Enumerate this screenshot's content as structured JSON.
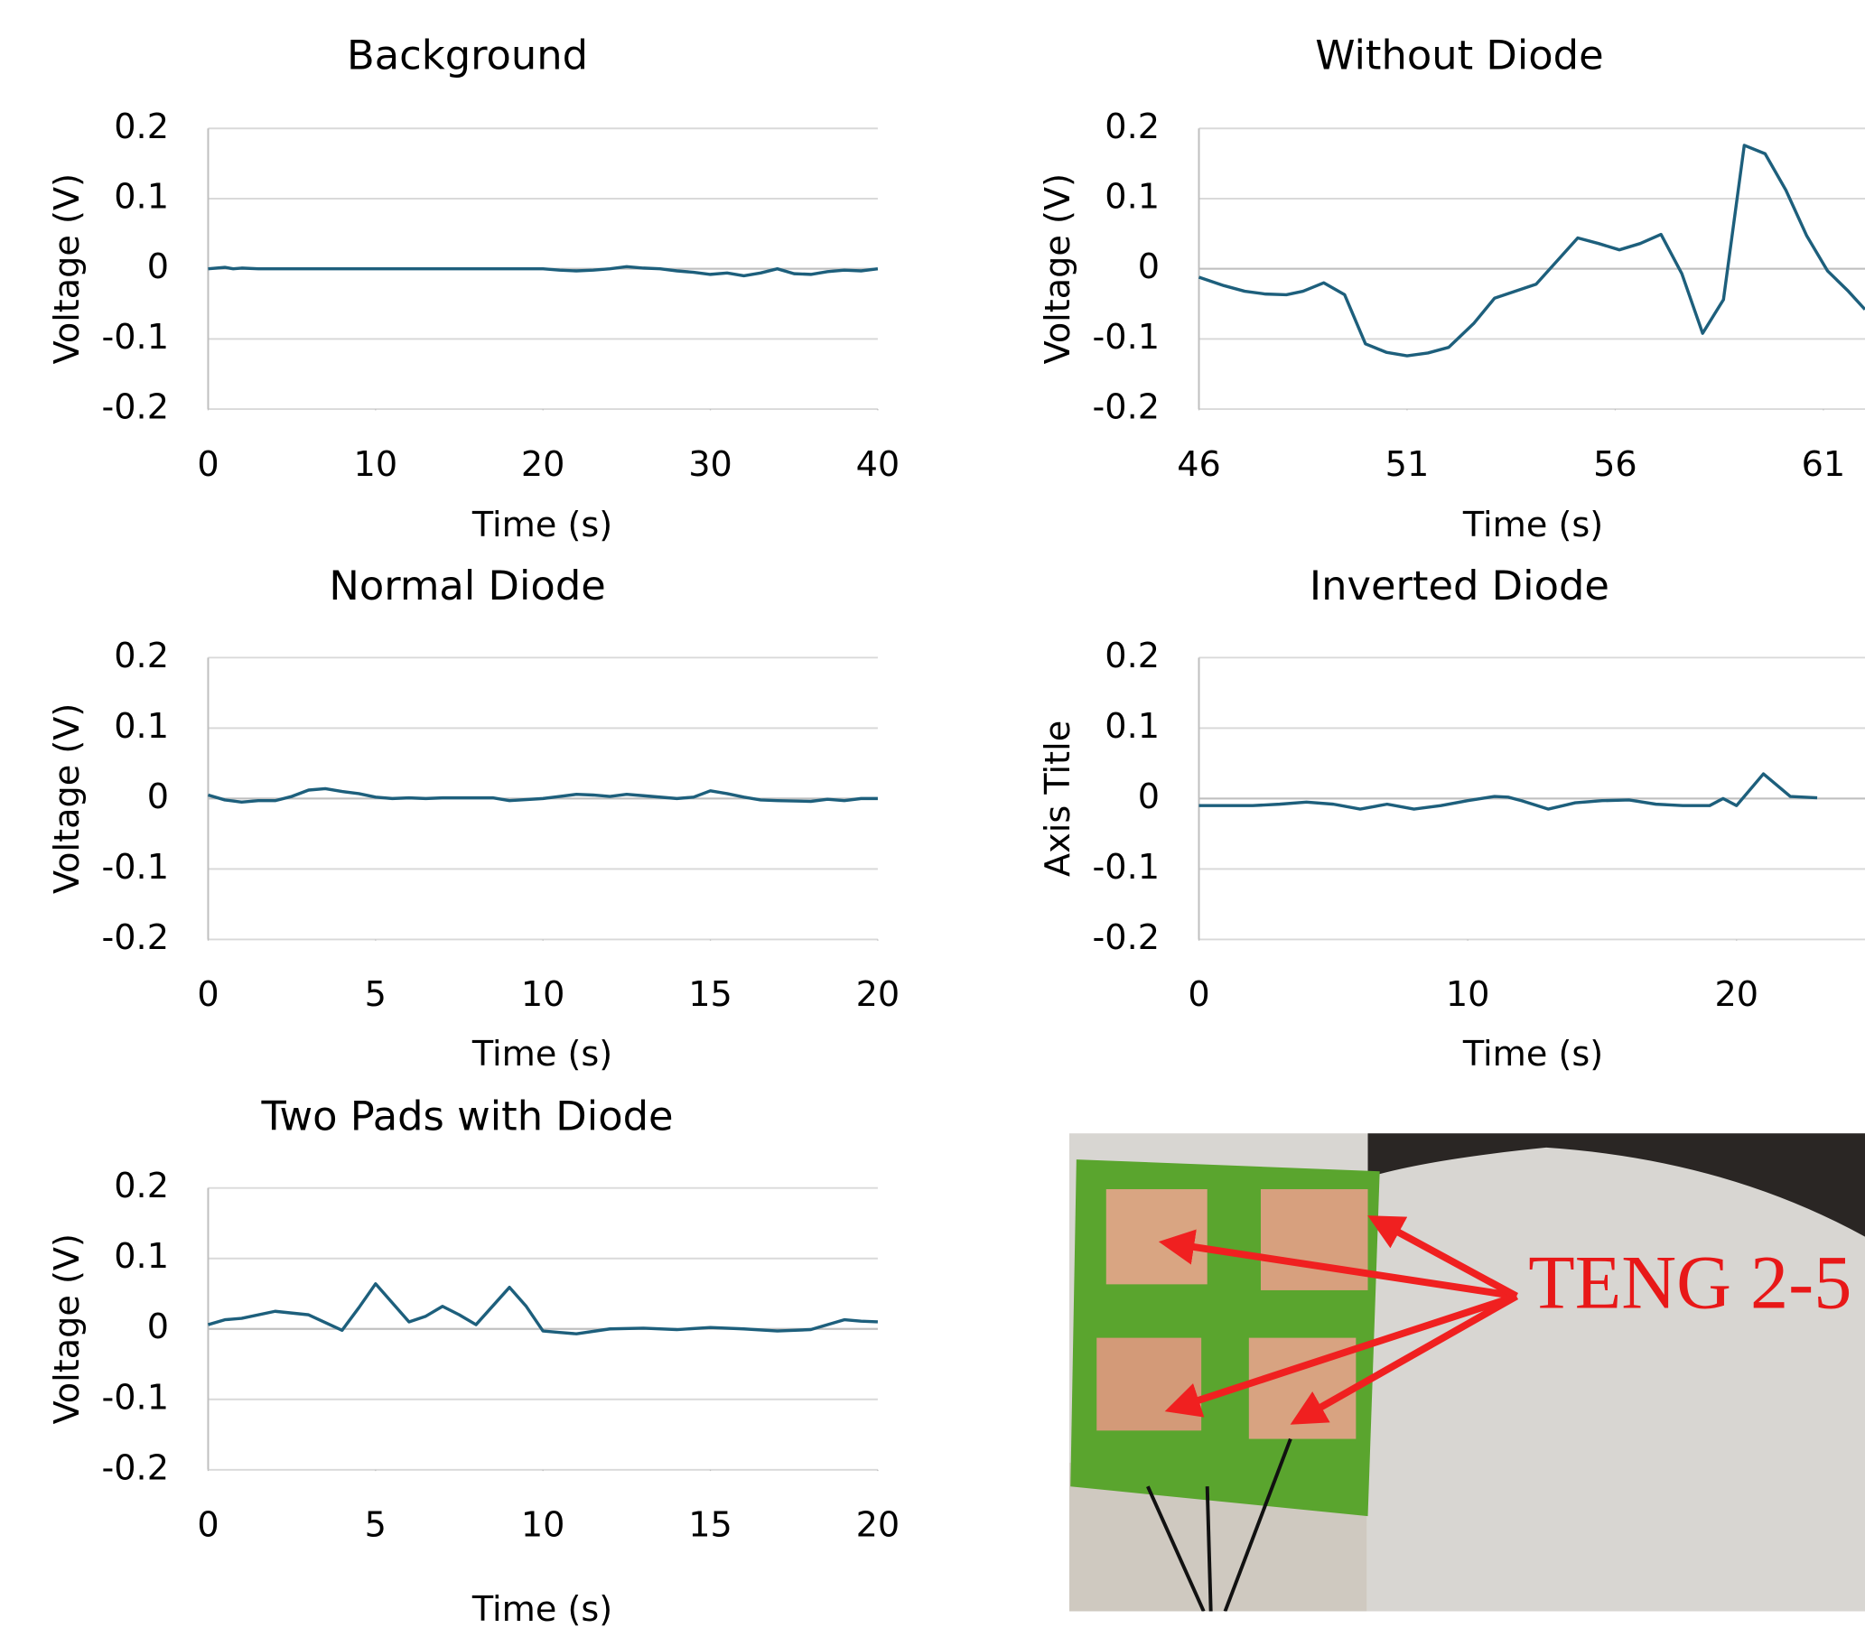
{
  "chart_data": [
    {
      "type": "line",
      "title": "Background",
      "x_label": "Time (s)",
      "y_label": "Voltage (V)",
      "color": "#1d5f7c",
      "x": [
        0,
        1,
        1.5,
        2,
        3,
        4,
        5,
        6,
        7,
        8,
        9,
        10,
        11,
        12,
        13,
        14,
        15,
        16,
        17,
        18,
        19,
        20,
        21,
        22,
        23,
        24,
        25,
        26,
        27,
        28,
        29,
        30,
        31,
        32,
        33,
        34,
        35,
        36,
        37,
        38,
        39,
        40
      ],
      "values": [
        0,
        0.002,
        0,
        0.001,
        0,
        0,
        0,
        0,
        0,
        0,
        0,
        0,
        0,
        0,
        0,
        0,
        0,
        0,
        0,
        0,
        0,
        0,
        -0.002,
        -0.003,
        -0.002,
        0,
        0.003,
        0.001,
        0,
        -0.003,
        -0.005,
        -0.008,
        -0.006,
        -0.01,
        -0.006,
        0,
        -0.007,
        -0.008,
        -0.004,
        -0.002,
        -0.003,
        0
      ],
      "xlim": [
        0,
        40
      ],
      "xticks": [
        0,
        10,
        20,
        30,
        40
      ],
      "ylim": [
        -0.2,
        0.2
      ],
      "yticks": [
        -0.2,
        -0.1,
        0,
        0.1,
        0.2
      ]
    },
    {
      "type": "line",
      "title": "Without Diode",
      "x_label": "Time (s)",
      "y_label": "Voltage (V)",
      "color": "#1d5f7c",
      "x": [
        46,
        46.6,
        47.1,
        47.6,
        48.1,
        48.5,
        49.0,
        49.5,
        50.0,
        50.5,
        51.0,
        51.5,
        52.0,
        52.6,
        53.1,
        54.1,
        55.1,
        55.6,
        56.1,
        56.6,
        57.1,
        57.6,
        58.1,
        58.6,
        59.1,
        59.6,
        60.1,
        60.6,
        61.1,
        61.6,
        62.0
      ],
      "values": [
        -0.012,
        -0.024,
        -0.032,
        -0.036,
        -0.037,
        -0.032,
        -0.02,
        -0.037,
        -0.107,
        -0.119,
        -0.124,
        -0.12,
        -0.112,
        -0.078,
        -0.042,
        -0.022,
        0.044,
        0.036,
        0.027,
        0.036,
        0.049,
        -0.007,
        -0.092,
        -0.044,
        0.176,
        0.164,
        0.112,
        0.047,
        -0.003,
        -0.032,
        -0.058
      ],
      "xlim": [
        46,
        62
      ],
      "xticks": [
        46,
        51,
        56,
        61
      ],
      "ylim": [
        -0.2,
        0.2
      ],
      "yticks": [
        -0.2,
        -0.1,
        0,
        0.1,
        0.2
      ]
    },
    {
      "type": "line",
      "title": "Normal Diode",
      "x_label": "Time (s)",
      "y_label": "Voltage (V)",
      "color": "#1d5f7c",
      "x": [
        0,
        0.5,
        1,
        1.5,
        2,
        2.5,
        3,
        3.5,
        4,
        4.5,
        5,
        5.5,
        6,
        6.5,
        7,
        8,
        8.5,
        9,
        10,
        10.5,
        11,
        11.5,
        12,
        12.5,
        13,
        14,
        14.5,
        15,
        15.5,
        16,
        16.5,
        17,
        18,
        18.5,
        19,
        19.5,
        20
      ],
      "values": [
        0.005,
        -0.002,
        -0.005,
        -0.003,
        -0.003,
        0.003,
        0.012,
        0.014,
        0.01,
        0.007,
        0.002,
        0,
        0.001,
        0,
        0.001,
        0.001,
        0.001,
        -0.003,
        0,
        0.003,
        0.006,
        0.005,
        0.003,
        0.006,
        0.004,
        0,
        0.002,
        0.011,
        0.007,
        0.002,
        -0.002,
        -0.003,
        -0.004,
        -0.001,
        -0.003,
        0,
        0
      ],
      "xlim": [
        0,
        20
      ],
      "xticks": [
        0,
        5,
        10,
        15,
        20
      ],
      "ylim": [
        -0.2,
        0.2
      ],
      "yticks": [
        -0.2,
        -0.1,
        0,
        0.1,
        0.2
      ]
    },
    {
      "type": "line",
      "title": "Inverted Diode",
      "x_label": "Time (s)",
      "y_label": "Axis Title",
      "color": "#1d5f7c",
      "x": [
        0,
        1,
        2,
        3,
        4,
        5,
        6,
        7,
        8,
        9,
        10,
        11,
        11.5,
        12,
        13,
        14,
        15,
        16,
        17,
        18,
        19,
        19.5,
        20,
        21,
        22,
        23
      ],
      "values": [
        -0.01,
        -0.01,
        -0.01,
        -0.008,
        -0.005,
        -0.008,
        -0.015,
        -0.008,
        -0.015,
        -0.01,
        -0.003,
        0.003,
        0.002,
        -0.003,
        -0.015,
        -0.006,
        -0.003,
        -0.002,
        -0.008,
        -0.01,
        -0.01,
        0,
        -0.01,
        0.035,
        0.003,
        0.001
      ],
      "xlim": [
        0,
        25
      ],
      "xticks": [
        0,
        10,
        20
      ],
      "ylim": [
        -0.2,
        0.2
      ],
      "yticks": [
        -0.2,
        -0.1,
        0,
        0.1,
        0.2
      ]
    },
    {
      "type": "line",
      "title": "Two Pads with Diode",
      "x_label": "Time (s)",
      "y_label": "Voltage (V)",
      "color": "#1d5f7c",
      "x": [
        0,
        0.5,
        1,
        2,
        3,
        4,
        4.5,
        5,
        6,
        6.5,
        7,
        7.5,
        8,
        9,
        9.5,
        10,
        10.5,
        11,
        12,
        13,
        14,
        15,
        16,
        17,
        18,
        19,
        19.5,
        20
      ],
      "values": [
        0.006,
        0.013,
        0.015,
        0.025,
        0.02,
        -0.002,
        0.03,
        0.064,
        0.01,
        0.018,
        0.032,
        0.02,
        0.006,
        0.059,
        0.032,
        -0.003,
        -0.005,
        -0.007,
        0,
        0.001,
        -0.001,
        0.002,
        0,
        -0.003,
        -0.001,
        0.013,
        0.011,
        0.01
      ],
      "xlim": [
        0,
        20
      ],
      "xticks": [
        0,
        5,
        10,
        15,
        20
      ],
      "ylim": [
        -0.2,
        0.2
      ],
      "yticks": [
        -0.2,
        -0.1,
        0,
        0.1,
        0.2
      ]
    }
  ],
  "photo": {
    "label": "TENG 2-5"
  }
}
